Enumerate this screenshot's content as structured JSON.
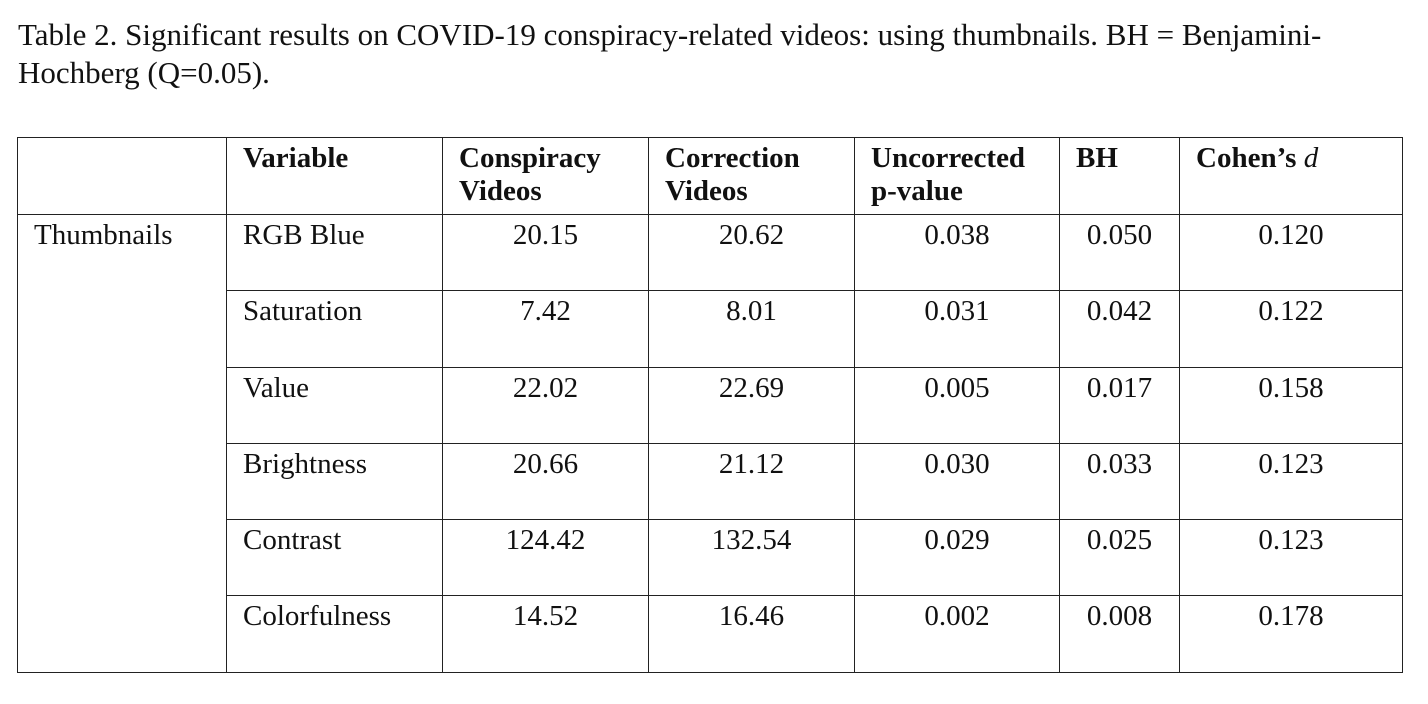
{
  "caption": "Table 2. Significant results on COVID-19 conspiracy-related videos: using thumbnails. BH = Benjamini-Hochberg (Q=0.05).",
  "table": {
    "header": [
      "Variable",
      "Conspiracy Videos",
      "Correction Videos",
      "Uncorrected p-value",
      "BH",
      {
        "label": "Cohen’s",
        "symbol": "d"
      }
    ],
    "group": "Thumbnails",
    "rows": [
      [
        "RGB Blue",
        "20.15",
        "20.62",
        "0.038",
        "0.050",
        "0.120"
      ],
      [
        "Saturation",
        "7.42",
        "8.01",
        "0.031",
        "0.042",
        "0.122"
      ],
      [
        "Value",
        "22.02",
        "22.69",
        "0.005",
        "0.017",
        "0.158"
      ],
      [
        "Brightness",
        "20.66",
        "21.12",
        "0.030",
        "0.033",
        "0.123"
      ],
      [
        "Contrast",
        "124.42",
        "132.54",
        "0.029",
        "0.025",
        "0.123"
      ],
      [
        "Colorfulness",
        "14.52",
        "16.46",
        "0.002",
        "0.008",
        "0.178"
      ]
    ]
  }
}
